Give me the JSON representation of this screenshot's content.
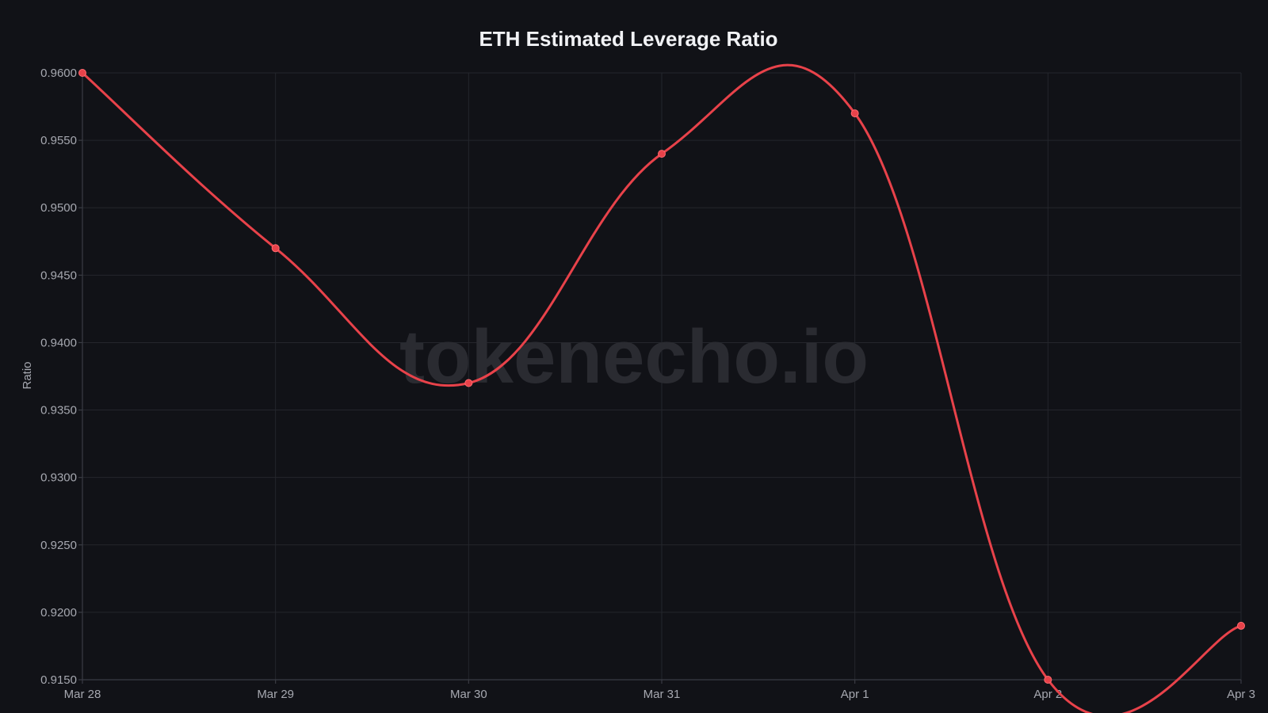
{
  "watermark": "tokenecho.io",
  "colors": {
    "background": "#111217",
    "line": "#e8424a",
    "grid": "#24262c",
    "text": "#a6a8b0",
    "title": "#f1f2f5"
  },
  "chart_data": {
    "type": "line",
    "title": "ETH Estimated Leverage Ratio",
    "xlabel": "",
    "ylabel": "Ratio",
    "categories": [
      "Mar 28",
      "Mar 29",
      "Mar 30",
      "Mar 31",
      "Apr 1",
      "Apr 2",
      "Apr 3"
    ],
    "series": [
      {
        "values": [
          0.96,
          0.947,
          0.937,
          0.954,
          0.957,
          0.915,
          0.919
        ]
      }
    ],
    "ylim": [
      0.915,
      0.96
    ],
    "yticks": [
      "0.9150",
      "0.9200",
      "0.9250",
      "0.9300",
      "0.9350",
      "0.9400",
      "0.9450",
      "0.9500",
      "0.9550",
      "0.9600"
    ],
    "grid": true,
    "smooth": true,
    "legend": "none"
  }
}
